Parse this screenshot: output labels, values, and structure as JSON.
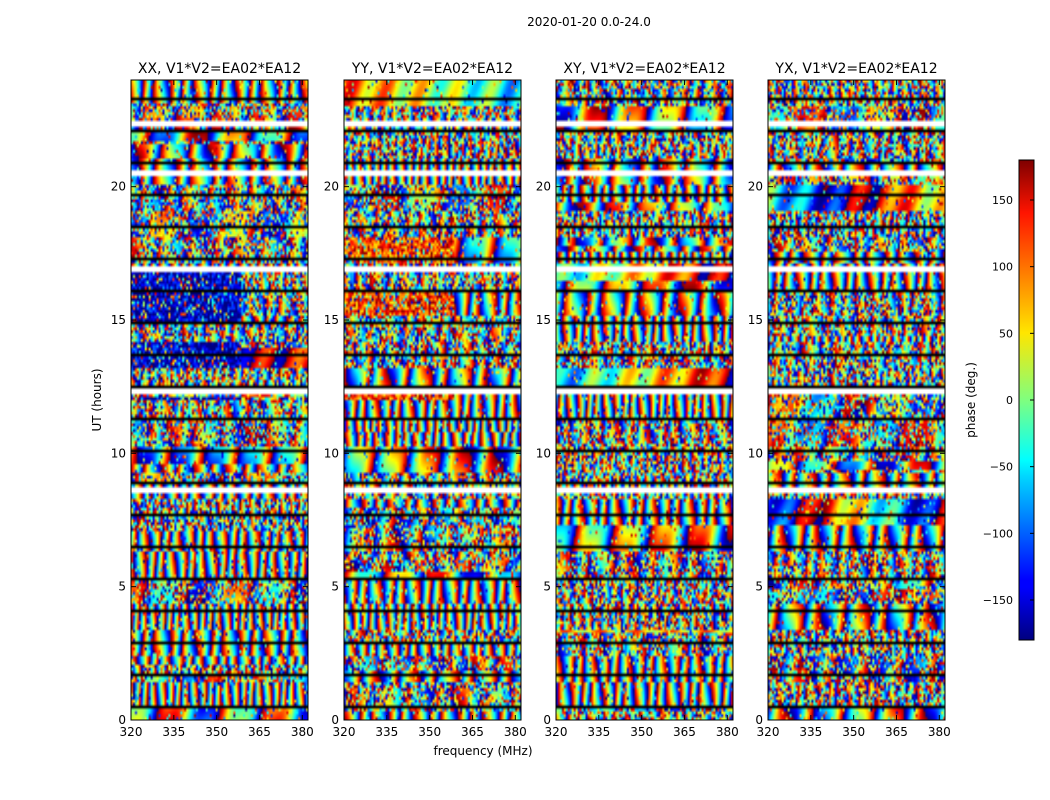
{
  "figure": {
    "suptitle": "2020-01-20 0.0-24.0"
  },
  "chart_data": {
    "type": "heatmap",
    "xlabel": "frequency (MHz)",
    "ylabel": "UT (hours)",
    "xlim": [
      320,
      382
    ],
    "ylim": [
      0,
      24
    ],
    "xticks": [
      320,
      335,
      350,
      365,
      380
    ],
    "yticks": [
      0,
      5,
      10,
      15,
      20
    ],
    "panels": [
      {
        "title": "XX, V1*V2=EA02*EA12",
        "polarization": "XX"
      },
      {
        "title": "YY, V1*V2=EA02*EA12",
        "polarization": "YY"
      },
      {
        "title": "XY, V1*V2=EA02*EA12",
        "polarization": "XY"
      },
      {
        "title": "YX, V1*V2=EA02*EA12",
        "polarization": "YX"
      }
    ],
    "flagged_gaps_hours": [
      [
        8.55,
        8.7
      ],
      [
        12.25,
        12.5
      ],
      [
        16.85,
        17.0
      ],
      [
        20.45,
        20.6
      ],
      [
        22.35,
        22.45
      ]
    ],
    "colorbar": {
      "label": "phase (deg.)",
      "range": [
        -180,
        180
      ],
      "ticks": [
        150,
        100,
        50,
        0,
        -50,
        -100,
        -150
      ],
      "tick_labels": [
        "150",
        "100",
        "50",
        "0",
        "−50",
        "−100",
        "−150"
      ],
      "colormap": "jet"
    }
  }
}
